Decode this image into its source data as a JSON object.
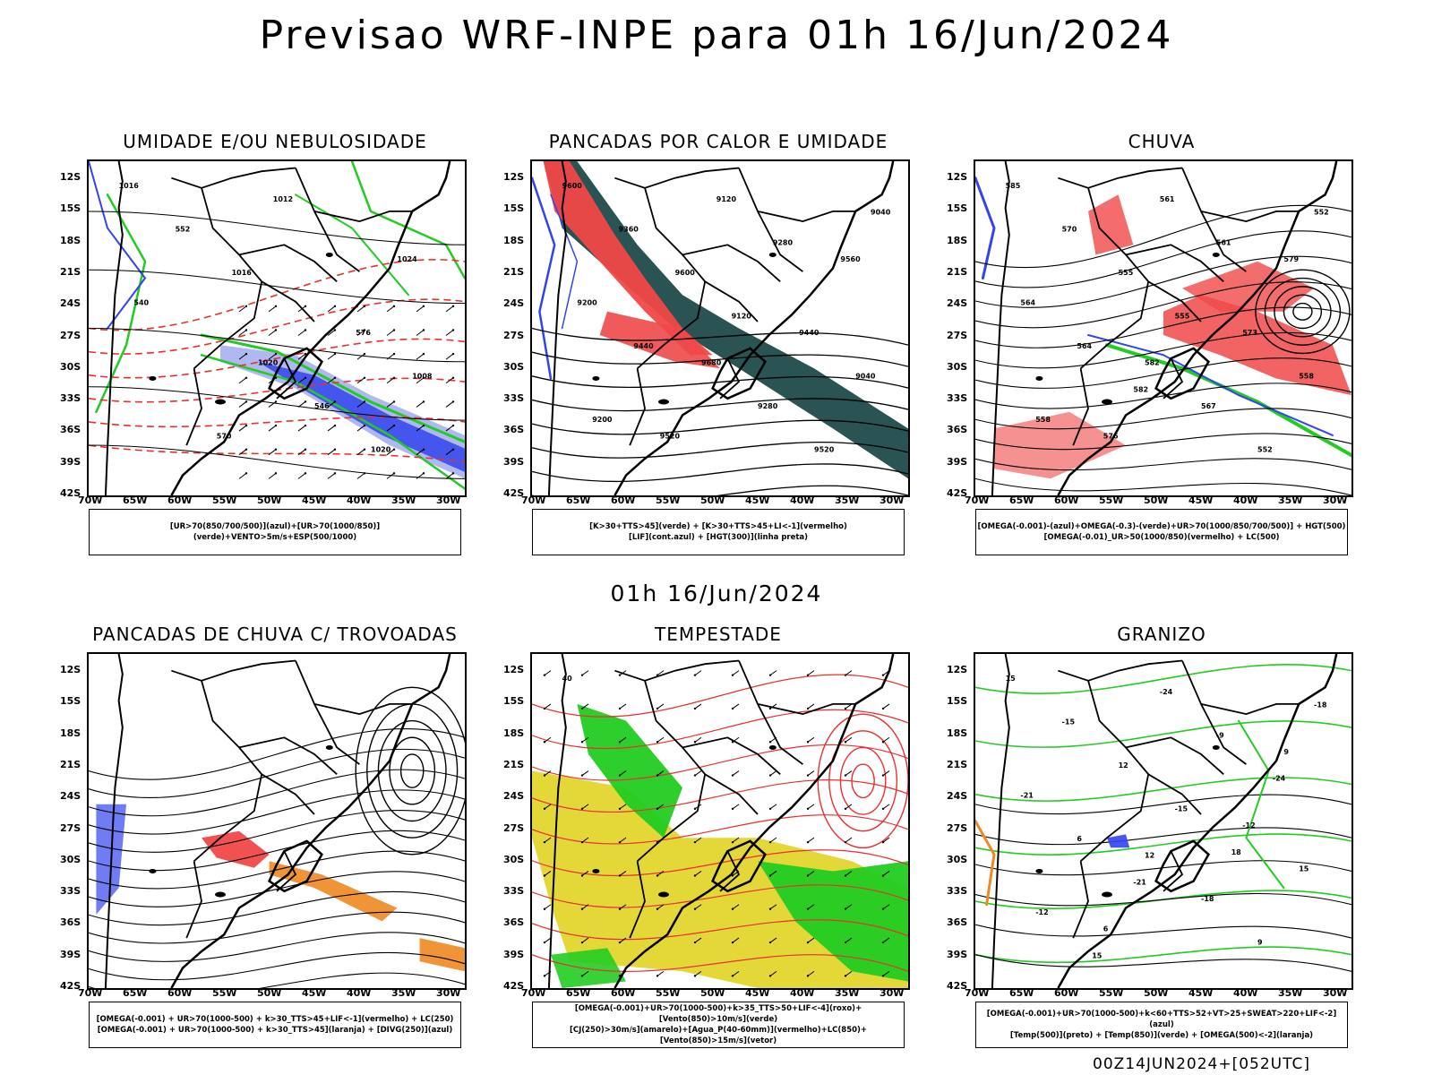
{
  "title": "Previsao WRF-INPE  para 01h 16/Jun/2024",
  "mid_title": "01h 16/Jun/2024",
  "footer": "00Z14JUN2024+[052UTC]",
  "lat_labels": [
    "12S",
    "15S",
    "18S",
    "21S",
    "24S",
    "27S",
    "30S",
    "33S",
    "36S",
    "39S",
    "42S"
  ],
  "lon_labels": [
    "70W",
    "65W",
    "60W",
    "55W",
    "50W",
    "45W",
    "40W",
    "35W",
    "30W"
  ],
  "panels": [
    {
      "title": "UMIDADE E/OU NEBULOSIDADE",
      "legend": [
        "[UR>70(850/700/500)](azul)+[UR>70(1000/850)](verde)+VENTO>5m/s+ESP(500/1000)"
      ],
      "labels": [
        "1016",
        "1020",
        "1024",
        "570",
        "576",
        "552",
        "546",
        "540",
        "1012",
        "1008",
        "1016",
        "1020"
      ]
    },
    {
      "title": "PANCADAS POR CALOR E UMIDADE",
      "legend": [
        "[K>30+TTS>45](verde)  +  [K>30+TTS>45+LI<-1](vermelho)",
        "[LIF](cont.azul)  +  [HGT(300)](linha preta)"
      ],
      "labels": [
        "9600",
        "9680",
        "9560",
        "9520",
        "9440",
        "9360",
        "9280",
        "9200",
        "9120",
        "9040",
        "9600",
        "9520",
        "9440",
        "9280",
        "9200",
        "9120",
        "9040"
      ]
    },
    {
      "title": "CHUVA",
      "legend": [
        "[OMEGA(-0.001)-(azul)+OMEGA(-0.3)-(verde)+UR>70(1000/850/700/500)]  +  HGT(500)",
        "[OMEGA(-0.01)_UR>50(1000/850)(vermelho)  +  LC(500)"
      ],
      "labels": [
        "585",
        "582",
        "579",
        "576",
        "573",
        "570",
        "567",
        "564",
        "561",
        "558",
        "555",
        "552",
        "564",
        "561",
        "558",
        "555",
        "552",
        "582"
      ]
    },
    {
      "title": "PANCADAS DE CHUVA C/ TROVOADAS",
      "legend": [
        "[OMEGA(-0.001)  +  UR>70(1000-500)  +  k>30_TTS>45+LIF<-1](vermelho)  +  LC(250)",
        "[OMEGA(-0.001)  +  UR>70(1000-500)  +  k>30_TTS>45](laranja)  +  [DIVG(250)](azul)"
      ],
      "labels": []
    },
    {
      "title": "TEMPESTADE",
      "legend": [
        "[OMEGA(-0.001)+UR>70(1000-500)+k>35_TTS>50+LIF<-4](roxo)+[Vento(850)>10m/s](verde)",
        "[CJ(250)>30m/s](amarelo)+[Agua_P(40-60mm)](vermelho)+LC(850)+[Vento(850)>15m/s](vetor)"
      ],
      "labels": [
        "40"
      ]
    },
    {
      "title": "GRANIZO",
      "legend": [
        "[OMEGA(-0.001)+UR>70(1000-500)+k<60+TTS>52+VT>25+SWEAT>220+LIF<-2](azul)",
        "[Temp(500)](preto)  +  [Temp(850)](verde)  +  [OMEGA(500)<-2](laranja)"
      ],
      "labels": [
        "15",
        "12",
        "9",
        "6",
        "-12",
        "-15",
        "-18",
        "-21",
        "-24",
        "15",
        "12",
        "9",
        "6",
        "-9",
        "-12",
        "-15",
        "-18",
        "-21",
        "-24",
        "15",
        "18"
      ]
    }
  ],
  "colors": {
    "red": "#f04848",
    "green": "#22cc22",
    "blue": "#3344ee",
    "lightblue": "#a8b0f0",
    "teal": "#1f4a4a",
    "orange": "#ee8822",
    "yellow": "#e3d62e",
    "contour_red": "#e83030"
  }
}
